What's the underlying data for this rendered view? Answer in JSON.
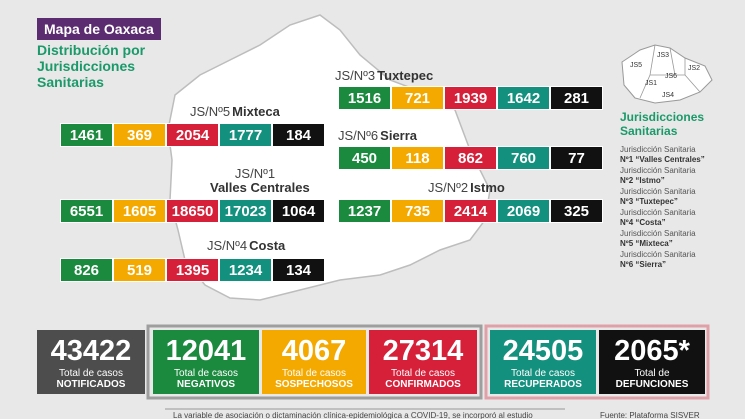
{
  "header": {
    "title": "Mapa de Oaxaca",
    "subtitle": "Distribución por Jurisdicciones Sanitarias"
  },
  "jurisdictions": [
    {
      "code": "JS/Nº3",
      "name": "Tuxtepec",
      "values": [
        1516,
        721,
        1939,
        1642,
        281
      ]
    },
    {
      "code": "JS/Nº5",
      "name": "Mixteca",
      "values": [
        1461,
        369,
        2054,
        1777,
        184
      ]
    },
    {
      "code": "JS/Nº6",
      "name": "Sierra",
      "values": [
        450,
        118,
        862,
        760,
        77
      ]
    },
    {
      "code": "JS/Nº1",
      "name": "Valles Centrales",
      "values": [
        6551,
        1605,
        18650,
        17023,
        1064
      ]
    },
    {
      "code": "JS/Nº2",
      "name": "Istmo",
      "values": [
        1237,
        735,
        2414,
        2069,
        325
      ]
    },
    {
      "code": "JS/Nº4",
      "name": "Costa",
      "values": [
        826,
        519,
        1395,
        1234,
        134
      ]
    }
  ],
  "legend": {
    "title": "Jurisdicciones Sanitarias",
    "map_labels": [
      "JS5",
      "JS3",
      "JS1",
      "JS6",
      "JS2",
      "JS4"
    ],
    "items": [
      {
        "prefix": "Jurisdicción Sanitaria",
        "name": "Nº1 “Valles Centrales”"
      },
      {
        "prefix": "Jurisdicción Sanitaria",
        "name": "Nº2 “Istmo”"
      },
      {
        "prefix": "Jurisdicción Sanitaria",
        "name": "Nº3 “Tuxtepec”"
      },
      {
        "prefix": "Jurisdicción Sanitaria",
        "name": "Nº4 “Costa”"
      },
      {
        "prefix": "Jurisdicción Sanitaria",
        "name": "Nº5 “Mixteca”"
      },
      {
        "prefix": "Jurisdicción Sanitaria",
        "name": "Nº6 “Sierra”"
      }
    ]
  },
  "totals": [
    {
      "value": 43422,
      "caption": "Total de casos",
      "label": "NOTIFICADOS"
    },
    {
      "value": 12041,
      "caption": "Total de casos",
      "label": "NEGATIVOS"
    },
    {
      "value": 4067,
      "caption": "Total de casos",
      "label": "SOSPECHOSOS"
    },
    {
      "value": 27314,
      "caption": "Total de casos",
      "label": "CONFIRMADOS"
    },
    {
      "value": 24505,
      "caption": "Total de casos",
      "label": "RECUPERADOS"
    },
    {
      "value": "2065*",
      "caption": "Total de",
      "label": "DEFUNCIONES"
    }
  ],
  "footer": {
    "note": "La variable de asociación o dictaminación clínica-epidemiológica a COVID-19, se incorporó al estudio",
    "source": "Fuente: Plataforma SISVER"
  }
}
